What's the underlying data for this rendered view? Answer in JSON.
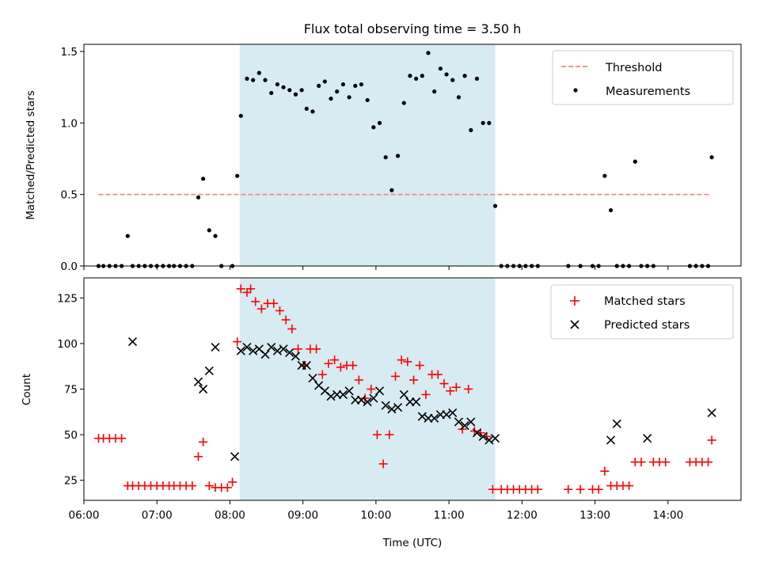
{
  "chart_data": [
    {
      "type": "scatter",
      "title": "Flux total observing time = 3.50 h",
      "xlabel": "",
      "ylabel": "Matched/Predicted stars",
      "xlim": [
        "06:00",
        "15:00"
      ],
      "ylim": [
        0,
        1.55
      ],
      "yticks": [
        0.0,
        0.5,
        1.0,
        1.5
      ],
      "ytick_labels": [
        "0.0",
        "0.5",
        "1.0",
        "1.5"
      ],
      "grid": false,
      "legend_position": "top-right",
      "shaded_span": {
        "start": "08:08",
        "end": "11:38",
        "color": "#add8e6"
      },
      "threshold": {
        "name": "Threshold",
        "value": 0.5,
        "x_range": [
          "06:12",
          "14:35"
        ],
        "color": "#ff7f7f"
      },
      "series": [
        {
          "name": "Measurements",
          "color": "#000000",
          "x": [
            "06:12",
            "06:16",
            "06:21",
            "06:26",
            "06:31",
            "06:36",
            "06:40",
            "06:45",
            "06:50",
            "06:55",
            "07:00",
            "07:05",
            "07:10",
            "07:14",
            "07:19",
            "07:24",
            "07:29",
            "07:34",
            "07:38",
            "07:43",
            "07:48",
            "07:53",
            "08:02",
            "08:06",
            "08:09",
            "08:14",
            "08:19",
            "08:24",
            "08:29",
            "08:34",
            "08:39",
            "08:44",
            "08:49",
            "08:54",
            "08:59",
            "09:03",
            "09:08",
            "09:13",
            "09:18",
            "09:23",
            "09:28",
            "09:33",
            "09:38",
            "09:43",
            "09:48",
            "09:53",
            "09:58",
            "10:03",
            "10:08",
            "10:13",
            "10:18",
            "10:23",
            "10:28",
            "10:33",
            "10:38",
            "10:43",
            "10:48",
            "10:53",
            "10:58",
            "11:03",
            "11:08",
            "11:13",
            "11:18",
            "11:23",
            "11:28",
            "11:33",
            "11:38",
            "11:43",
            "11:48",
            "11:53",
            "11:58",
            "12:03",
            "12:08",
            "12:13",
            "12:38",
            "12:48",
            "12:58",
            "13:03",
            "13:08",
            "13:13",
            "13:18",
            "13:23",
            "13:28",
            "13:33",
            "13:38",
            "13:43",
            "13:48",
            "14:18",
            "14:23",
            "14:28",
            "14:33",
            "14:36"
          ],
          "values": [
            0,
            0,
            0,
            0,
            0,
            0.21,
            0,
            0,
            0,
            0,
            0,
            0,
            0,
            0,
            0,
            0,
            0,
            0.48,
            0.61,
            0.25,
            0.21,
            0,
            0,
            0.63,
            1.05,
            1.31,
            1.3,
            1.35,
            1.3,
            1.21,
            1.27,
            1.25,
            1.23,
            1.2,
            1.23,
            1.1,
            1.08,
            1.26,
            1.29,
            1.17,
            1.22,
            1.27,
            1.18,
            1.26,
            1.27,
            1.16,
            0.97,
            1.0,
            0.76,
            0.53,
            0.77,
            1.14,
            1.33,
            1.31,
            1.33,
            1.49,
            1.22,
            1.38,
            1.34,
            1.3,
            1.18,
            1.33,
            0.95,
            1.31,
            1.0,
            1.0,
            0.42,
            0,
            0,
            0,
            0,
            0,
            0,
            0,
            0,
            0,
            0,
            0,
            0.63,
            0.39,
            0,
            0,
            0,
            0.73,
            0,
            0,
            0,
            0,
            0,
            0,
            0,
            0.76
          ]
        }
      ]
    },
    {
      "type": "scatter",
      "title": "",
      "xlabel": "Time (UTC)",
      "ylabel": "Count",
      "xlim": [
        "06:00",
        "15:00"
      ],
      "ylim": [
        14,
        136
      ],
      "xticks": [
        "06:00",
        "07:00",
        "08:00",
        "09:00",
        "10:00",
        "11:00",
        "12:00",
        "13:00",
        "14:00"
      ],
      "yticks": [
        25,
        50,
        75,
        100,
        125
      ],
      "grid": false,
      "legend_position": "top-right",
      "shaded_span": {
        "start": "08:08",
        "end": "11:38",
        "color": "#add8e6"
      },
      "series": [
        {
          "name": "Matched stars",
          "marker": "+",
          "color": "#ff0000",
          "x": [
            "06:12",
            "06:16",
            "06:21",
            "06:26",
            "06:31",
            "06:36",
            "06:40",
            "06:45",
            "06:50",
            "06:55",
            "07:00",
            "07:05",
            "07:10",
            "07:14",
            "07:19",
            "07:24",
            "07:29",
            "07:34",
            "07:38",
            "07:43",
            "07:48",
            "07:53",
            "07:58",
            "08:02",
            "08:06",
            "08:09",
            "08:14",
            "08:17",
            "08:21",
            "08:26",
            "08:31",
            "08:36",
            "08:41",
            "08:46",
            "08:51",
            "08:56",
            "09:01",
            "09:06",
            "09:11",
            "09:16",
            "09:21",
            "09:26",
            "09:31",
            "09:36",
            "09:41",
            "09:46",
            "09:51",
            "09:56",
            "10:01",
            "10:06",
            "10:11",
            "10:16",
            "10:21",
            "10:26",
            "10:31",
            "10:36",
            "10:41",
            "10:46",
            "10:51",
            "10:56",
            "11:01",
            "11:06",
            "11:11",
            "11:16",
            "11:21",
            "11:26",
            "11:31",
            "11:36",
            "11:43",
            "11:48",
            "11:53",
            "11:58",
            "12:03",
            "12:08",
            "12:13",
            "12:38",
            "12:48",
            "12:58",
            "13:03",
            "13:08",
            "13:13",
            "13:18",
            "13:23",
            "13:28",
            "13:33",
            "13:38",
            "13:48",
            "13:53",
            "13:58",
            "14:18",
            "14:23",
            "14:28",
            "14:33",
            "14:36"
          ],
          "values": [
            48,
            48,
            48,
            48,
            48,
            22,
            22,
            22,
            22,
            22,
            22,
            22,
            22,
            22,
            22,
            22,
            22,
            38,
            46,
            22,
            21,
            21,
            21,
            24,
            101,
            130,
            128,
            130,
            123,
            119,
            122,
            122,
            118,
            113,
            108,
            97,
            88,
            97,
            97,
            83,
            89,
            91,
            87,
            88,
            88,
            80,
            70,
            75,
            50,
            34,
            50,
            82,
            91,
            90,
            80,
            88,
            72,
            83,
            83,
            78,
            74,
            76,
            53,
            75,
            52,
            51,
            49,
            20,
            20,
            20,
            20,
            20,
            20,
            20,
            20,
            20,
            20,
            20,
            20,
            30,
            22,
            22,
            22,
            22,
            35,
            35,
            35,
            35,
            35,
            35,
            35,
            35,
            35,
            47
          ]
        },
        {
          "name": "Predicted stars",
          "marker": "x",
          "color": "#000000",
          "x": [
            "06:40",
            "07:34",
            "07:38",
            "07:43",
            "07:48",
            "08:04",
            "08:09",
            "08:14",
            "08:19",
            "08:24",
            "08:29",
            "08:34",
            "08:39",
            "08:44",
            "08:49",
            "08:54",
            "08:59",
            "09:03",
            "09:08",
            "09:13",
            "09:18",
            "09:23",
            "09:28",
            "09:33",
            "09:38",
            "09:43",
            "09:48",
            "09:53",
            "09:58",
            "10:03",
            "10:08",
            "10:13",
            "10:18",
            "10:23",
            "10:28",
            "10:33",
            "10:38",
            "10:43",
            "10:48",
            "10:53",
            "10:58",
            "11:03",
            "11:08",
            "11:13",
            "11:18",
            "11:23",
            "11:28",
            "11:33",
            "11:38",
            "13:13",
            "13:18",
            "13:43",
            "14:36"
          ],
          "values": [
            101,
            79,
            75,
            85,
            98,
            38,
            96,
            98,
            96,
            97,
            94,
            98,
            96,
            97,
            95,
            93,
            88,
            88,
            81,
            77,
            74,
            71,
            72,
            72,
            74,
            69,
            69,
            68,
            70,
            74,
            66,
            64,
            65,
            72,
            68,
            68,
            60,
            59,
            59,
            61,
            61,
            62,
            57,
            55,
            57,
            51,
            49,
            47,
            48,
            47,
            56,
            48,
            62
          ]
        }
      ]
    }
  ]
}
